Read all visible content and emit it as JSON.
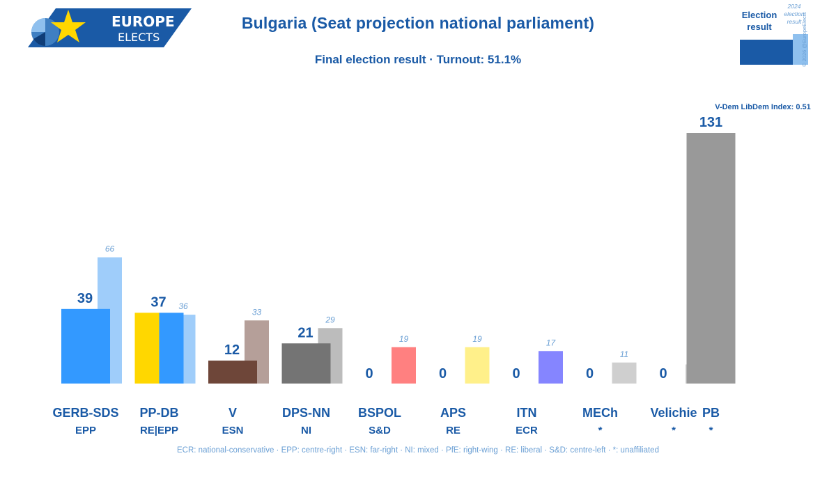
{
  "logo": {
    "line1": "EUROPE",
    "line2": "ELECTS"
  },
  "title": "Bulgaria (Seat projection national parliament)",
  "subtitle": "Final election result · Turnout: 51.1%",
  "legend": {
    "current_label_line1": "Election",
    "current_label_line2": "result",
    "previous_label_line1": "2024",
    "previous_label_line2": "election",
    "previous_label_line3": "result",
    "copyright": "© 2026 @EuropeElects"
  },
  "vdem_note": "V-Dem LibDem Index: 0.51",
  "footnote": "ECR: national-conservative · EPP: centre-right · ESN: far-right · NI: mixed · PfE: right-wing · RE: liberal · S&D: centre-left · *: unaffiliated",
  "colors": {
    "brand_blue": "#1a5aa6",
    "light_blue_text": "#6a9fd4"
  },
  "chart_data": {
    "type": "bar",
    "categories": [
      "GERB-SDS",
      "PP-DB",
      "V",
      "DPS-NN",
      "BSPOL",
      "APS",
      "ITN",
      "MECh",
      "Velichie",
      "PB"
    ],
    "groups": [
      "EPP",
      "RE|EPP",
      "ESN",
      "NI",
      "S&D",
      "RE",
      "ECR",
      "*",
      "*",
      "*"
    ],
    "series": [
      {
        "name": "Election result",
        "values": [
          39,
          37,
          12,
          21,
          0,
          0,
          0,
          0,
          0,
          131
        ],
        "colors": [
          "#3399ff",
          [
            "#ffd700",
            "#3399ff"
          ],
          "#6e4639",
          "#747474",
          "#ff7d7d",
          "#ffee7f",
          "#8080ff",
          "#cfcfcf",
          "#cfcfcf",
          "#999999"
        ]
      },
      {
        "name": "2024 election result",
        "values": [
          66,
          36,
          33,
          29,
          19,
          19,
          17,
          11,
          10,
          null
        ],
        "colors": [
          "#9fcdfa",
          "#9fcdfa",
          "#b59f99",
          "#bcbcbc",
          "#ff8080",
          "#fff08a",
          "#8585ff",
          "#cfcfcf",
          "#cfcfcf",
          null
        ]
      }
    ],
    "ylim": [
      0,
      131
    ],
    "grid": false,
    "legend_position": "top-right"
  }
}
